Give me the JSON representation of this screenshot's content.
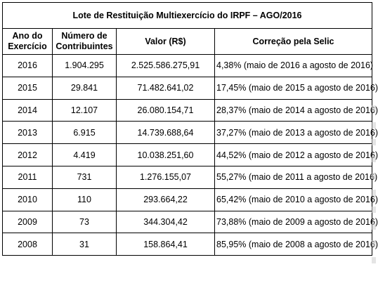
{
  "table": {
    "title": "Lote de Restituição Multiexercício do IRPF – AGO/2016",
    "headers": {
      "year_line1": "Ano do",
      "year_line2": "Exercício",
      "count_line1": "Número de",
      "count_line2": "Contribuintes",
      "value": "Valor (R$)",
      "correction": "Correção pela Selic"
    },
    "rows": [
      {
        "year": "2016",
        "count": "1.904.295",
        "value": "2.525.586.275,91",
        "correction": "4,38% (maio de 2016 a agosto de 2016)"
      },
      {
        "year": "2015",
        "count": "29.841",
        "value": "71.482.641,02",
        "correction": "17,45% (maio de 2015 a agosto de 2016)"
      },
      {
        "year": "2014",
        "count": "12.107",
        "value": "26.080.154,71",
        "correction": "28,37% (maio de 2014 a agosto de 2016)"
      },
      {
        "year": "2013",
        "count": "6.915",
        "value": "14.739.688,64",
        "correction": "37,27% (maio de 2013 a agosto de 2016)"
      },
      {
        "year": "2012",
        "count": "4.419",
        "value": "10.038.251,60",
        "correction": "44,52% (maio de 2012 a agosto de 2016)"
      },
      {
        "year": "2011",
        "count": "731",
        "value": "1.276.155,07",
        "correction": "55,27% (maio de 2011 a agosto de 2016)"
      },
      {
        "year": "2010",
        "count": "110",
        "value": "293.664,22",
        "correction": "65,42% (maio de 2010 a agosto de 2016)"
      },
      {
        "year": "2009",
        "count": "73",
        "value": "344.304,42",
        "correction": "73,88% (maio de 2009 a agosto de 2016)"
      },
      {
        "year": "2008",
        "count": "31",
        "value": "158.864,41",
        "correction": "85,95% (maio de 2008 a agosto de 2016)"
      }
    ]
  }
}
